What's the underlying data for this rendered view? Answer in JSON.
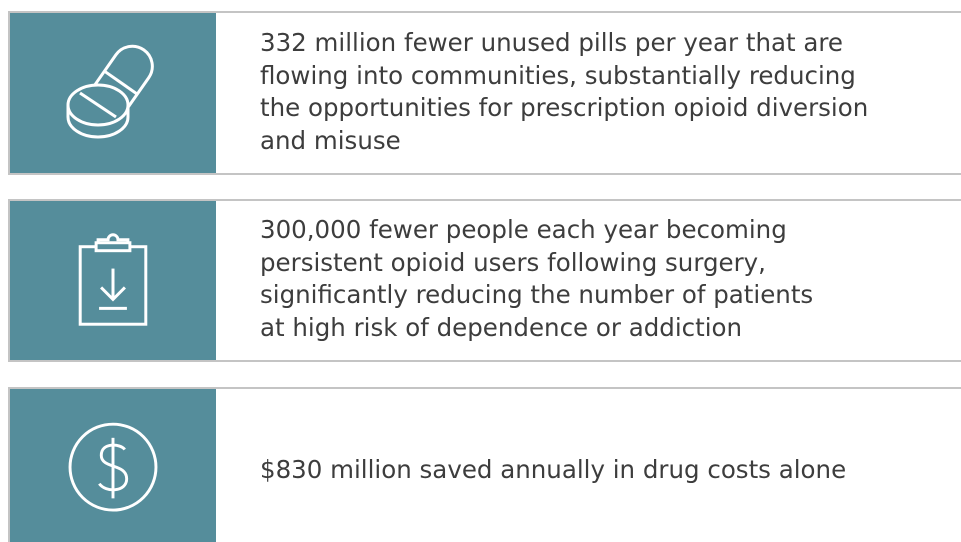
{
  "items": [
    {
      "lines": [
        "332 million fewer unused pills per year that are",
        "flowing into communities, substantially reducing",
        "the opportunities for prescription opioid diversion",
        "and misuse"
      ]
    },
    {
      "lines": [
        "300,000 fewer people each year becoming",
        "persistent opioid users following surgery,",
        "significantly reducing the number of patients",
        "at high risk of dependence or addiction"
      ]
    },
    {
      "lines": [
        "$830 million saved annually in drug costs alone"
      ]
    }
  ]
}
